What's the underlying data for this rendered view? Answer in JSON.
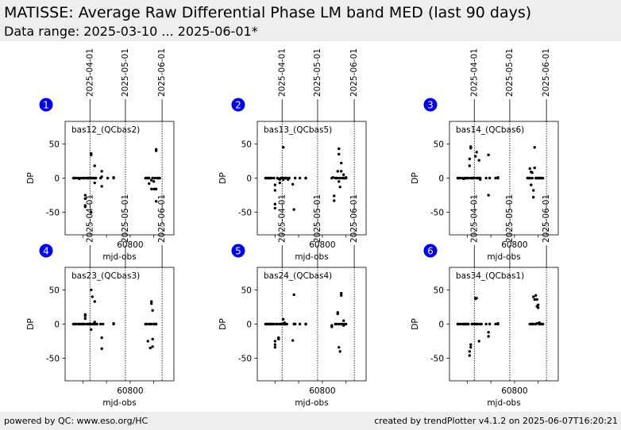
{
  "header": {
    "title": "MATISSE: Average Raw Differential Phase LM band MED (last 90 days)",
    "subtitle": "Data range: 2025-03-10 ... 2025-06-01*"
  },
  "footer": {
    "left": "powered by QC: www.eso.org/HC",
    "right": "created by trendPlotter v4.1.2 on 2025-06-07T16:20:21"
  },
  "colors": {
    "marker": "#000000",
    "badge": "#0000ee",
    "header_bg": "#eeeeee"
  },
  "chart_data": [
    {
      "type": "scatter",
      "badge": "1",
      "label": "bas12_(QCbas2)",
      "xlabel": "mjd-obs",
      "ylabel": "DP",
      "xlim": [
        60745,
        60837
      ],
      "ylim": [
        -83,
        83
      ],
      "xticks": [
        60800
      ],
      "yticks": [
        50,
        0,
        -50
      ],
      "date_lines": [
        {
          "x": 60766,
          "label": "2025-04-01"
        },
        {
          "x": 60796,
          "label": "2025-05-01"
        },
        {
          "x": 60827,
          "label": "2025-06-01"
        }
      ],
      "points": [
        [
          60752,
          0
        ],
        [
          60753,
          0
        ],
        [
          60754,
          0
        ],
        [
          60756,
          0
        ],
        [
          60757,
          -1
        ],
        [
          60758,
          0
        ],
        [
          60760,
          0
        ],
        [
          60761,
          0
        ],
        [
          60762,
          -25
        ],
        [
          60762,
          -30
        ],
        [
          60762,
          -40
        ],
        [
          60762,
          -42
        ],
        [
          60763,
          0
        ],
        [
          60764,
          0
        ],
        [
          60765,
          0
        ],
        [
          60766,
          0
        ],
        [
          60767,
          0
        ],
        [
          60767,
          34
        ],
        [
          60767,
          36
        ],
        [
          60767,
          -50
        ],
        [
          60768,
          0
        ],
        [
          60769,
          0
        ],
        [
          60770,
          0
        ],
        [
          60770,
          18
        ],
        [
          60770,
          -7
        ],
        [
          60771,
          0
        ],
        [
          60775,
          0
        ],
        [
          60776,
          10
        ],
        [
          60776,
          2
        ],
        [
          60776,
          -12
        ],
        [
          60781,
          0
        ],
        [
          60786,
          0
        ],
        [
          60786,
          1
        ],
        [
          60813,
          0
        ],
        [
          60814,
          0
        ],
        [
          60815,
          0
        ],
        [
          60816,
          0
        ],
        [
          60816,
          -8
        ],
        [
          60818,
          -3
        ],
        [
          60818,
          -16
        ],
        [
          60819,
          0
        ],
        [
          60820,
          -5
        ],
        [
          60820,
          -16
        ],
        [
          60821,
          0
        ],
        [
          60821,
          -16
        ],
        [
          60822,
          40
        ],
        [
          60822,
          42
        ],
        [
          60822,
          -16
        ],
        [
          60822,
          -34
        ],
        [
          60823,
          0
        ],
        [
          60824,
          0
        ],
        [
          60825,
          0
        ]
      ]
    },
    {
      "type": "scatter",
      "badge": "2",
      "label": "bas13_(QCbas5)",
      "xlabel": "mjd-obs",
      "ylabel": "DP",
      "xlim": [
        60745,
        60837
      ],
      "ylim": [
        -83,
        83
      ],
      "xticks": [
        60800
      ],
      "yticks": [
        50,
        0,
        -50
      ],
      "date_lines": [
        {
          "x": 60766,
          "label": "2025-04-01"
        },
        {
          "x": 60796,
          "label": "2025-05-01"
        },
        {
          "x": 60827,
          "label": "2025-06-01"
        }
      ],
      "points": [
        [
          60752,
          0
        ],
        [
          60753,
          0
        ],
        [
          60754,
          0
        ],
        [
          60755,
          0
        ],
        [
          60756,
          0
        ],
        [
          60757,
          0
        ],
        [
          60759,
          0
        ],
        [
          60760,
          -10
        ],
        [
          60760,
          -18
        ],
        [
          60760,
          -38
        ],
        [
          60760,
          -44
        ],
        [
          60762,
          0
        ],
        [
          60763,
          -1
        ],
        [
          60764,
          -2
        ],
        [
          60764,
          -7
        ],
        [
          60765,
          0
        ],
        [
          60766,
          0
        ],
        [
          60767,
          45
        ],
        [
          60767,
          0
        ],
        [
          60767,
          -2
        ],
        [
          60768,
          0
        ],
        [
          60769,
          0
        ],
        [
          60770,
          0
        ],
        [
          60771,
          -2
        ],
        [
          60772,
          0
        ],
        [
          60775,
          -9
        ],
        [
          60776,
          -46
        ],
        [
          60777,
          0
        ],
        [
          60781,
          0
        ],
        [
          60786,
          0
        ],
        [
          60786,
          0
        ],
        [
          60808,
          0
        ],
        [
          60809,
          1
        ],
        [
          60810,
          -26
        ],
        [
          60810,
          -33
        ],
        [
          60811,
          0
        ],
        [
          60812,
          0
        ],
        [
          60813,
          10
        ],
        [
          60813,
          0
        ],
        [
          60814,
          43
        ],
        [
          60814,
          35
        ],
        [
          60814,
          -5
        ],
        [
          60815,
          0
        ],
        [
          60815,
          -13
        ],
        [
          60816,
          22
        ],
        [
          60816,
          10
        ],
        [
          60817,
          0
        ],
        [
          60818,
          0
        ],
        [
          60818,
          5
        ],
        [
          60819,
          0
        ],
        [
          60820,
          0
        ],
        [
          60820,
          1
        ]
      ]
    },
    {
      "type": "scatter",
      "badge": "3",
      "label": "bas14_(QCbas6)",
      "xlabel": "mjd-obs",
      "ylabel": "DP",
      "xlim": [
        60745,
        60837
      ],
      "ylim": [
        -83,
        83
      ],
      "xticks": [
        60800
      ],
      "yticks": [
        50,
        0,
        -50
      ],
      "date_lines": [
        {
          "x": 60766,
          "label": "2025-04-01"
        },
        {
          "x": 60796,
          "label": "2025-05-01"
        },
        {
          "x": 60827,
          "label": "2025-06-01"
        }
      ],
      "points": [
        [
          60752,
          0
        ],
        [
          60753,
          0
        ],
        [
          60754,
          0
        ],
        [
          60756,
          0
        ],
        [
          60757,
          -1
        ],
        [
          60758,
          0
        ],
        [
          60759,
          0
        ],
        [
          60760,
          0
        ],
        [
          60761,
          0
        ],
        [
          60762,
          18
        ],
        [
          60762,
          28
        ],
        [
          60763,
          44
        ],
        [
          60763,
          46
        ],
        [
          60763,
          0
        ],
        [
          60764,
          0
        ],
        [
          60765,
          0
        ],
        [
          60766,
          0
        ],
        [
          60767,
          32
        ],
        [
          60768,
          38
        ],
        [
          60768,
          0
        ],
        [
          60769,
          0
        ],
        [
          60770,
          0
        ],
        [
          60770,
          26
        ],
        [
          60771,
          -2
        ],
        [
          60771,
          0
        ],
        [
          60776,
          0
        ],
        [
          60778,
          34
        ],
        [
          60778,
          -25
        ],
        [
          60779,
          0
        ],
        [
          60784,
          0
        ],
        [
          60786,
          0
        ],
        [
          60786,
          1
        ],
        [
          60811,
          0
        ],
        [
          60812,
          0
        ],
        [
          60813,
          0
        ],
        [
          60813,
          14
        ],
        [
          60814,
          9
        ],
        [
          60814,
          -10
        ],
        [
          60815,
          0
        ],
        [
          60815,
          8
        ],
        [
          60816,
          -18
        ],
        [
          60816,
          -28
        ],
        [
          60817,
          45
        ],
        [
          60817,
          15
        ],
        [
          60818,
          0
        ],
        [
          60819,
          0
        ],
        [
          60820,
          0
        ],
        [
          60821,
          0
        ],
        [
          60822,
          0
        ],
        [
          60823,
          0
        ],
        [
          60824,
          0
        ]
      ]
    },
    {
      "type": "scatter",
      "badge": "4",
      "label": "bas23_(QCbas3)",
      "xlabel": "mjd-obs",
      "ylabel": "DP",
      "xlim": [
        60745,
        60837
      ],
      "ylim": [
        -83,
        83
      ],
      "xticks": [
        60800
      ],
      "yticks": [
        50,
        0,
        -50
      ],
      "date_lines": [
        {
          "x": 60766,
          "label": "2025-04-01"
        },
        {
          "x": 60796,
          "label": "2025-05-01"
        },
        {
          "x": 60827,
          "label": "2025-06-01"
        }
      ],
      "points": [
        [
          60752,
          0
        ],
        [
          60753,
          0
        ],
        [
          60754,
          0
        ],
        [
          60756,
          0
        ],
        [
          60757,
          0
        ],
        [
          60758,
          0
        ],
        [
          60759,
          0
        ],
        [
          60760,
          0
        ],
        [
          60761,
          0
        ],
        [
          60762,
          14
        ],
        [
          60762,
          8
        ],
        [
          60762,
          12
        ],
        [
          60763,
          0
        ],
        [
          60764,
          0
        ],
        [
          60765,
          0
        ],
        [
          60766,
          0
        ],
        [
          60767,
          50
        ],
        [
          60767,
          0
        ],
        [
          60767,
          -8
        ],
        [
          60768,
          40
        ],
        [
          60768,
          0
        ],
        [
          60769,
          0
        ],
        [
          60770,
          0
        ],
        [
          60770,
          33
        ],
        [
          60770,
          3
        ],
        [
          60771,
          0
        ],
        [
          60772,
          0
        ],
        [
          60775,
          0
        ],
        [
          60776,
          -20
        ],
        [
          60776,
          -36
        ],
        [
          60777,
          0
        ],
        [
          60786,
          0
        ],
        [
          60786,
          1
        ],
        [
          60813,
          0
        ],
        [
          60814,
          0
        ],
        [
          60815,
          -25
        ],
        [
          60816,
          0
        ],
        [
          60817,
          -35
        ],
        [
          60817,
          0
        ],
        [
          60818,
          33
        ],
        [
          60818,
          30
        ],
        [
          60818,
          0
        ],
        [
          60819,
          20
        ],
        [
          60819,
          -33
        ],
        [
          60819,
          -22
        ],
        [
          60820,
          0
        ],
        [
          60821,
          0
        ],
        [
          60822,
          0
        ]
      ]
    },
    {
      "type": "scatter",
      "badge": "5",
      "label": "bas24_(QCbas4)",
      "xlabel": "mjd-obs",
      "ylabel": "DP",
      "xlim": [
        60745,
        60837
      ],
      "ylim": [
        -83,
        83
      ],
      "xticks": [
        60800
      ],
      "yticks": [
        50,
        0,
        -50
      ],
      "date_lines": [
        {
          "x": 60766,
          "label": "2025-04-01"
        },
        {
          "x": 60796,
          "label": "2025-05-01"
        },
        {
          "x": 60827,
          "label": "2025-06-01"
        }
      ],
      "points": [
        [
          60752,
          0
        ],
        [
          60753,
          0
        ],
        [
          60754,
          0
        ],
        [
          60755,
          0
        ],
        [
          60756,
          0
        ],
        [
          60757,
          0
        ],
        [
          60758,
          0
        ],
        [
          60759,
          0
        ],
        [
          60760,
          -25
        ],
        [
          60760,
          -30
        ],
        [
          60760,
          -34
        ],
        [
          60761,
          0
        ],
        [
          60762,
          0
        ],
        [
          60763,
          -20
        ],
        [
          60763,
          -22
        ],
        [
          60764,
          0
        ],
        [
          60765,
          0
        ],
        [
          60766,
          0
        ],
        [
          60767,
          7
        ],
        [
          60767,
          0
        ],
        [
          60768,
          2
        ],
        [
          60768,
          0
        ],
        [
          60769,
          0
        ],
        [
          60770,
          0
        ],
        [
          60775,
          -24
        ],
        [
          60776,
          0
        ],
        [
          60776,
          43
        ],
        [
          60777,
          0
        ],
        [
          60781,
          0
        ],
        [
          60786,
          0
        ],
        [
          60786,
          0
        ],
        [
          60808,
          -2
        ],
        [
          60808,
          -4
        ],
        [
          60811,
          0
        ],
        [
          60812,
          0
        ],
        [
          60813,
          15
        ],
        [
          60813,
          17
        ],
        [
          60814,
          0
        ],
        [
          60814,
          -34
        ],
        [
          60815,
          -40
        ],
        [
          60816,
          45
        ],
        [
          60816,
          42
        ],
        [
          60816,
          0
        ],
        [
          60817,
          0
        ],
        [
          60818,
          5
        ],
        [
          60818,
          -2
        ],
        [
          60819,
          0
        ],
        [
          60820,
          0
        ]
      ]
    },
    {
      "type": "scatter",
      "badge": "6",
      "label": "bas34_(QCbas1)",
      "xlabel": "mjd-obs",
      "ylabel": "DP",
      "xlim": [
        60745,
        60837
      ],
      "ylim": [
        -83,
        83
      ],
      "xticks": [
        60800
      ],
      "yticks": [
        50,
        0,
        -50
      ],
      "date_lines": [
        {
          "x": 60766,
          "label": "2025-04-01"
        },
        {
          "x": 60796,
          "label": "2025-05-01"
        },
        {
          "x": 60827,
          "label": "2025-06-01"
        }
      ],
      "points": [
        [
          60752,
          0
        ],
        [
          60753,
          0
        ],
        [
          60754,
          0
        ],
        [
          60756,
          0
        ],
        [
          60757,
          0
        ],
        [
          60758,
          0
        ],
        [
          60759,
          0
        ],
        [
          60760,
          0
        ],
        [
          60761,
          0
        ],
        [
          60762,
          -46
        ],
        [
          60762,
          -40
        ],
        [
          60763,
          -30
        ],
        [
          60763,
          -34
        ],
        [
          60764,
          0
        ],
        [
          60765,
          0
        ],
        [
          60766,
          0
        ],
        [
          60767,
          0
        ],
        [
          60767,
          38
        ],
        [
          60767,
          37
        ],
        [
          60768,
          38
        ],
        [
          60768,
          0
        ],
        [
          60769,
          0
        ],
        [
          60770,
          -25
        ],
        [
          60771,
          0
        ],
        [
          60772,
          0
        ],
        [
          60776,
          0
        ],
        [
          60778,
          -12
        ],
        [
          60778,
          -18
        ],
        [
          60779,
          0
        ],
        [
          60784,
          0
        ],
        [
          60786,
          0
        ],
        [
          60786,
          1
        ],
        [
          60813,
          0
        ],
        [
          60814,
          0
        ],
        [
          60815,
          0
        ],
        [
          60816,
          0
        ],
        [
          60816,
          40
        ],
        [
          60817,
          36
        ],
        [
          60818,
          0
        ],
        [
          60818,
          42
        ],
        [
          60819,
          36
        ],
        [
          60819,
          26
        ],
        [
          60819,
          1
        ],
        [
          60820,
          28
        ],
        [
          60820,
          24
        ],
        [
          60821,
          0
        ],
        [
          60821,
          2
        ],
        [
          60822,
          0
        ],
        [
          60823,
          0
        ],
        [
          60824,
          0
        ]
      ]
    }
  ]
}
